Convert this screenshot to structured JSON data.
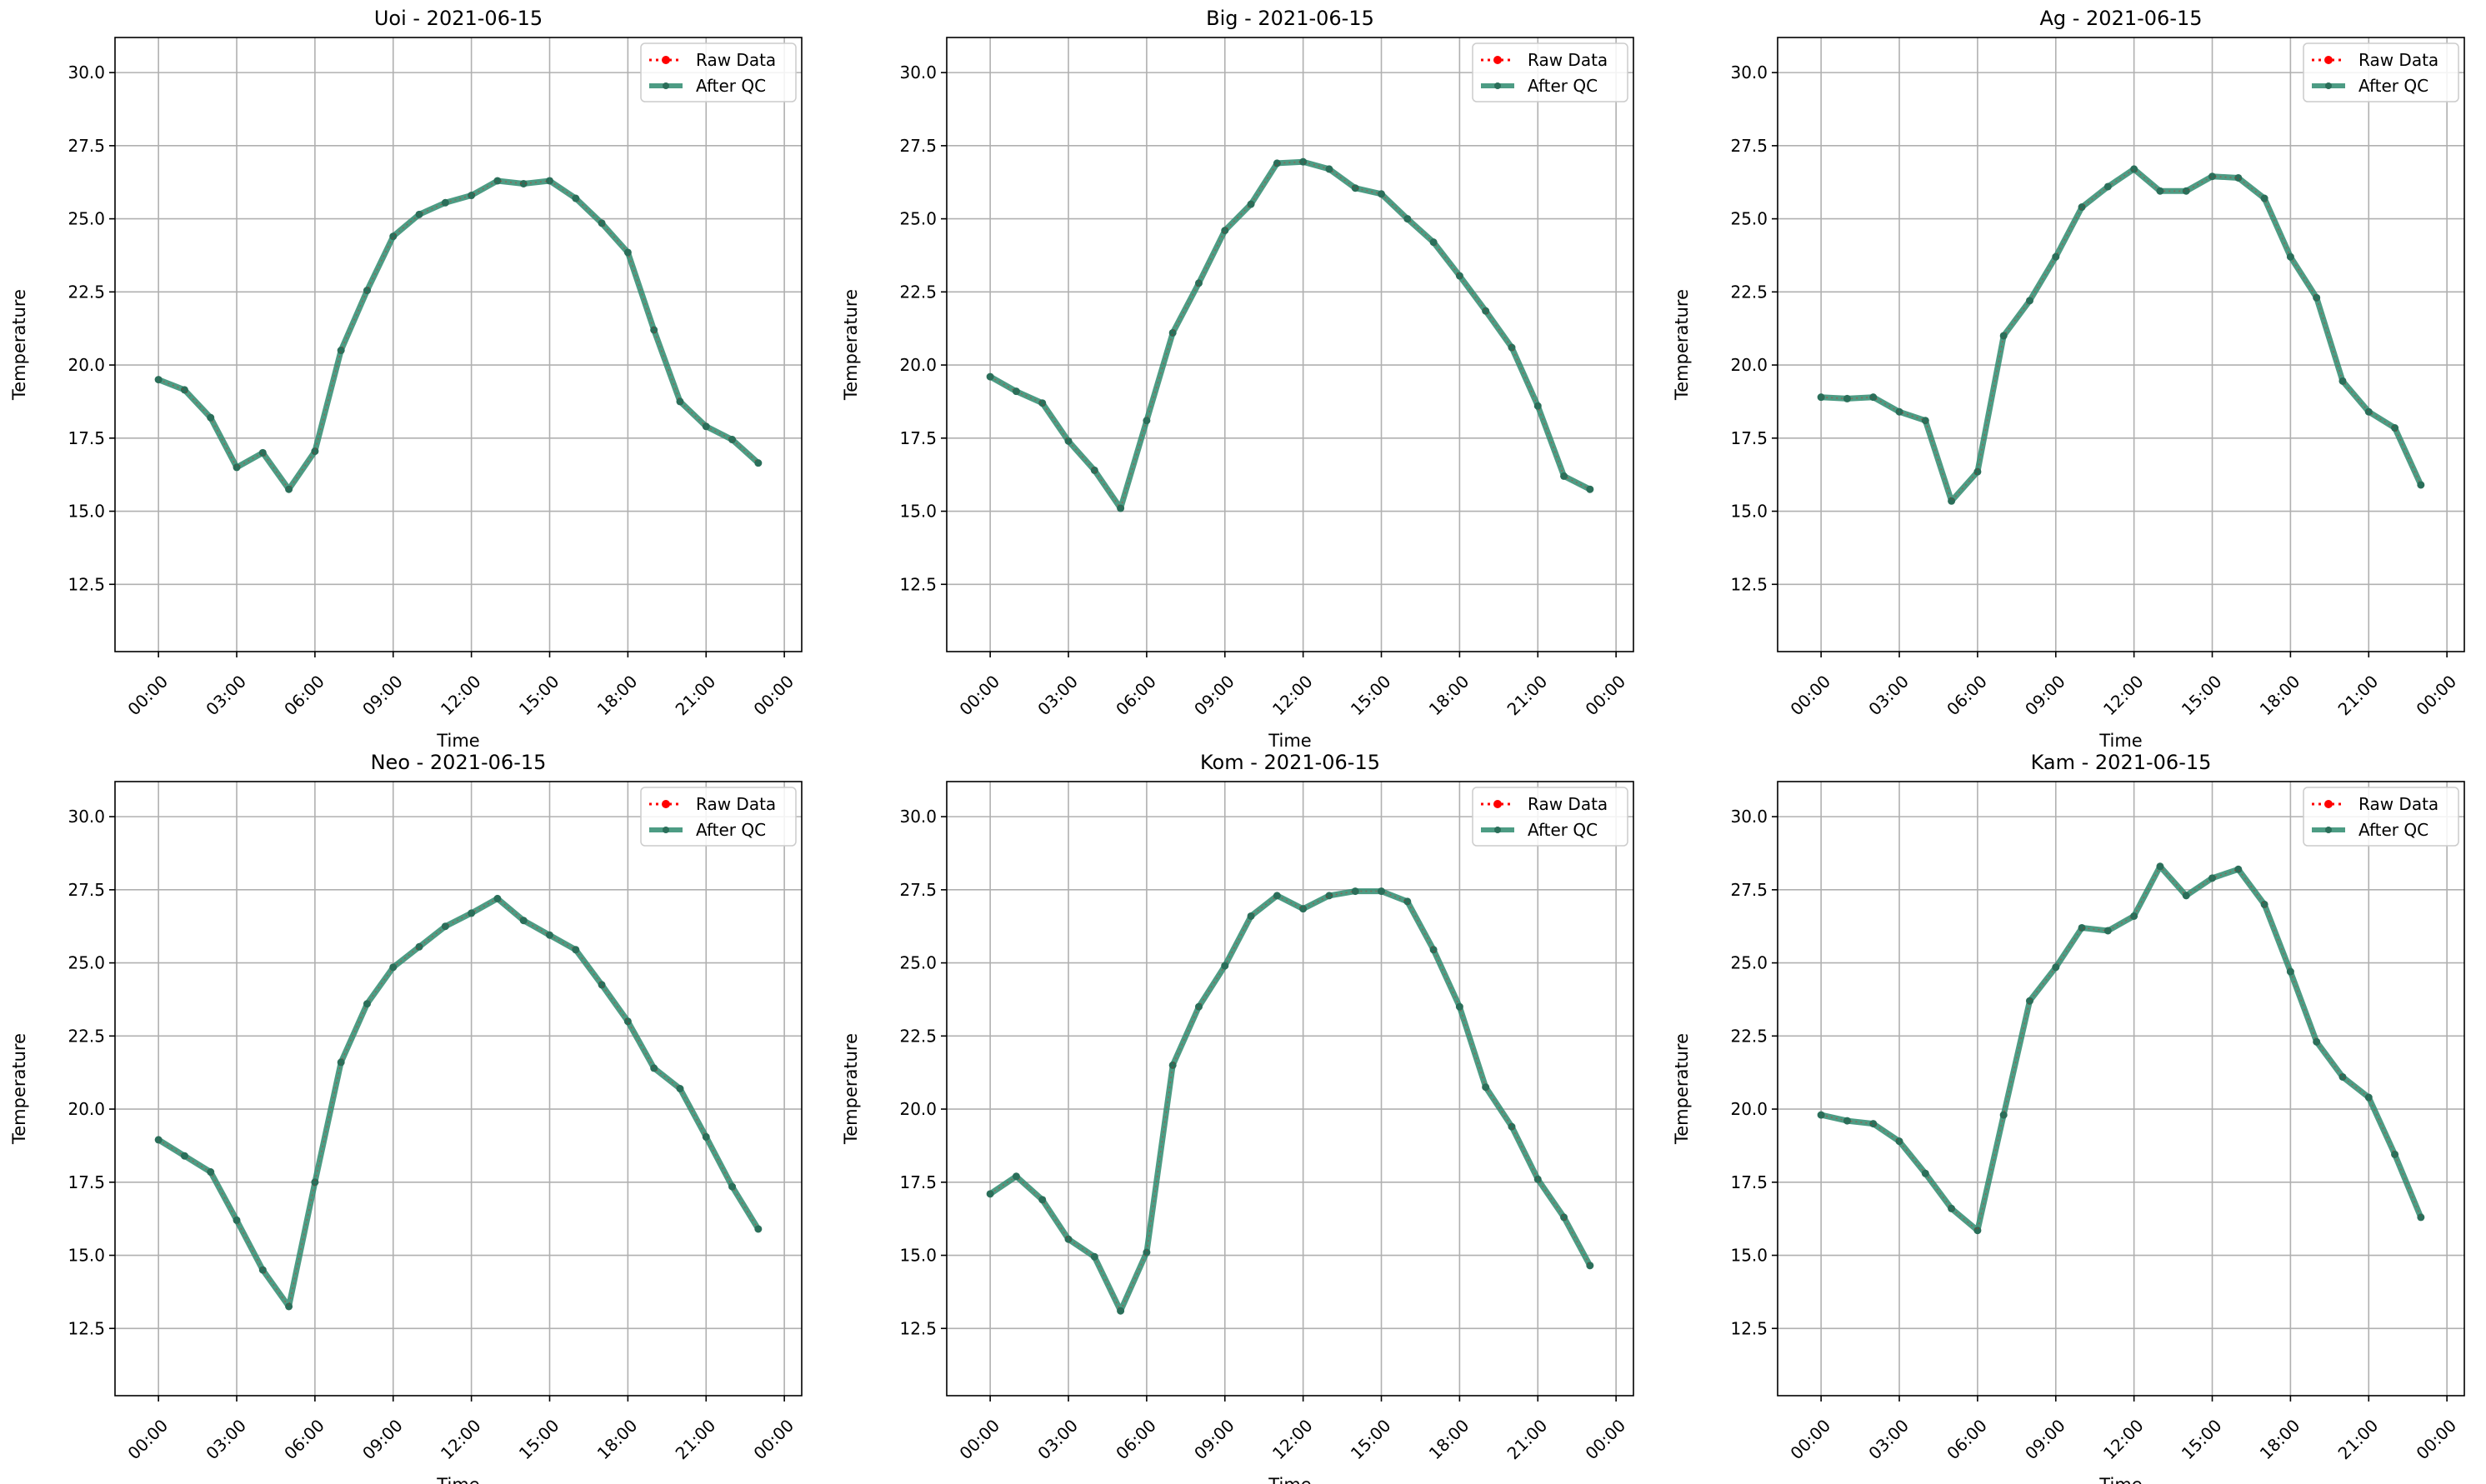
{
  "legend": {
    "raw_label": "Raw Data",
    "qc_label": "After QC"
  },
  "colors": {
    "raw": "#ff0000",
    "qc": "#2e8b6f",
    "qc_marker": "#2b6f5a",
    "grid": "#b0b0b0",
    "axes": "#000000"
  },
  "chart_data": [
    {
      "type": "line",
      "title": "Uoi - 2021-06-15",
      "xlabel": "Time",
      "ylabel": "Temperature",
      "xlim": [
        "2021-06-14 22:20",
        "2021-06-16 00:40"
      ],
      "ylim": [
        10.2,
        31.2
      ],
      "xticks": [
        "00:00",
        "03:00",
        "06:00",
        "09:00",
        "12:00",
        "15:00",
        "18:00",
        "21:00",
        "00:00"
      ],
      "yticks": [
        "12.5",
        "15.0",
        "17.5",
        "20.0",
        "22.5",
        "25.0",
        "27.5",
        "30.0"
      ],
      "grid": true,
      "legend_position": "upper right",
      "x": [
        "00:00",
        "01:00",
        "02:00",
        "03:00",
        "04:00",
        "05:00",
        "06:00",
        "07:00",
        "08:00",
        "09:00",
        "10:00",
        "11:00",
        "12:00",
        "13:00",
        "14:00",
        "15:00",
        "16:00",
        "17:00",
        "18:00",
        "19:00",
        "20:00",
        "21:00",
        "22:00",
        "23:00"
      ],
      "series": [
        {
          "name": "Raw Data",
          "values": [
            19.5,
            19.15,
            18.2,
            16.5,
            17.0,
            15.75,
            17.05,
            20.5,
            22.55,
            24.4,
            25.15,
            25.55,
            25.8,
            26.3,
            26.2,
            26.3,
            25.7,
            24.85,
            23.85,
            21.2,
            18.75,
            17.9,
            17.45,
            16.65
          ]
        },
        {
          "name": "After QC",
          "values": [
            19.5,
            19.15,
            18.2,
            16.5,
            17.0,
            15.75,
            17.05,
            20.5,
            22.55,
            24.4,
            25.15,
            25.55,
            25.8,
            26.3,
            26.2,
            26.3,
            25.7,
            24.85,
            23.85,
            21.2,
            18.75,
            17.9,
            17.45,
            16.65
          ]
        }
      ]
    },
    {
      "type": "line",
      "title": "Big - 2021-06-15",
      "xlabel": "Time",
      "ylabel": "Temperature",
      "xlim": [
        "2021-06-14 22:20",
        "2021-06-16 00:40"
      ],
      "ylim": [
        10.2,
        31.2
      ],
      "xticks": [
        "00:00",
        "03:00",
        "06:00",
        "09:00",
        "12:00",
        "15:00",
        "18:00",
        "21:00",
        "00:00"
      ],
      "yticks": [
        "12.5",
        "15.0",
        "17.5",
        "20.0",
        "22.5",
        "25.0",
        "27.5",
        "30.0"
      ],
      "grid": true,
      "legend_position": "upper right",
      "x": [
        "00:00",
        "01:00",
        "02:00",
        "03:00",
        "04:00",
        "05:00",
        "06:00",
        "07:00",
        "08:00",
        "09:00",
        "10:00",
        "11:00",
        "12:00",
        "13:00",
        "14:00",
        "15:00",
        "16:00",
        "17:00",
        "18:00",
        "19:00",
        "20:00",
        "21:00",
        "22:00",
        "23:00"
      ],
      "series": [
        {
          "name": "Raw Data",
          "values": [
            19.6,
            19.1,
            18.7,
            17.4,
            16.4,
            15.1,
            18.1,
            21.1,
            22.8,
            24.6,
            25.5,
            26.9,
            26.95,
            26.7,
            26.05,
            25.85,
            25.0,
            24.2,
            23.05,
            21.85,
            20.6,
            18.6,
            16.2,
            15.75
          ]
        },
        {
          "name": "After QC",
          "values": [
            19.6,
            19.1,
            18.7,
            17.4,
            16.4,
            15.1,
            18.1,
            21.1,
            22.8,
            24.6,
            25.5,
            26.9,
            26.95,
            26.7,
            26.05,
            25.85,
            25.0,
            24.2,
            23.05,
            21.85,
            20.6,
            18.6,
            16.2,
            15.75
          ]
        }
      ]
    },
    {
      "type": "line",
      "title": "Ag - 2021-06-15",
      "xlabel": "Time",
      "ylabel": "Temperature",
      "xlim": [
        "2021-06-14 22:20",
        "2021-06-16 00:40"
      ],
      "ylim": [
        10.2,
        31.2
      ],
      "xticks": [
        "00:00",
        "03:00",
        "06:00",
        "09:00",
        "12:00",
        "15:00",
        "18:00",
        "21:00",
        "00:00"
      ],
      "yticks": [
        "12.5",
        "15.0",
        "17.5",
        "20.0",
        "22.5",
        "25.0",
        "27.5",
        "30.0"
      ],
      "grid": true,
      "legend_position": "upper right",
      "x": [
        "00:00",
        "01:00",
        "02:00",
        "03:00",
        "04:00",
        "05:00",
        "06:00",
        "07:00",
        "08:00",
        "09:00",
        "10:00",
        "11:00",
        "12:00",
        "13:00",
        "14:00",
        "15:00",
        "16:00",
        "17:00",
        "18:00",
        "19:00",
        "20:00",
        "21:00",
        "22:00",
        "23:00"
      ],
      "series": [
        {
          "name": "Raw Data",
          "values": [
            18.9,
            18.85,
            18.9,
            18.4,
            18.1,
            15.35,
            16.35,
            21.0,
            22.2,
            23.7,
            25.4,
            26.1,
            26.7,
            25.95,
            25.95,
            26.45,
            26.4,
            25.7,
            23.7,
            22.3,
            19.45,
            18.4,
            17.85,
            15.9
          ]
        },
        {
          "name": "After QC",
          "values": [
            18.9,
            18.85,
            18.9,
            18.4,
            18.1,
            15.35,
            16.35,
            21.0,
            22.2,
            23.7,
            25.4,
            26.1,
            26.7,
            25.95,
            25.95,
            26.45,
            26.4,
            25.7,
            23.7,
            22.3,
            19.45,
            18.4,
            17.85,
            15.9
          ]
        }
      ]
    },
    {
      "type": "line",
      "title": "Neo - 2021-06-15",
      "xlabel": "Time",
      "ylabel": "Temperature",
      "xlim": [
        "2021-06-14 22:20",
        "2021-06-16 00:40"
      ],
      "ylim": [
        10.2,
        31.2
      ],
      "xticks": [
        "00:00",
        "03:00",
        "06:00",
        "09:00",
        "12:00",
        "15:00",
        "18:00",
        "21:00",
        "00:00"
      ],
      "yticks": [
        "12.5",
        "15.0",
        "17.5",
        "20.0",
        "22.5",
        "25.0",
        "27.5",
        "30.0"
      ],
      "grid": true,
      "legend_position": "upper right",
      "x": [
        "00:00",
        "01:00",
        "02:00",
        "03:00",
        "04:00",
        "05:00",
        "06:00",
        "07:00",
        "08:00",
        "09:00",
        "10:00",
        "11:00",
        "12:00",
        "13:00",
        "14:00",
        "15:00",
        "16:00",
        "17:00",
        "18:00",
        "19:00",
        "20:00",
        "21:00",
        "22:00",
        "23:00"
      ],
      "series": [
        {
          "name": "Raw Data",
          "values": [
            18.95,
            18.4,
            17.85,
            16.2,
            14.5,
            13.25,
            17.5,
            21.6,
            23.6,
            24.85,
            25.55,
            26.25,
            26.7,
            27.2,
            26.45,
            25.95,
            25.45,
            24.25,
            23.0,
            21.4,
            20.7,
            19.05,
            17.35,
            15.9
          ]
        },
        {
          "name": "After QC",
          "values": [
            18.95,
            18.4,
            17.85,
            16.2,
            14.5,
            13.25,
            17.5,
            21.6,
            23.6,
            24.85,
            25.55,
            26.25,
            26.7,
            27.2,
            26.45,
            25.95,
            25.45,
            24.25,
            23.0,
            21.4,
            20.7,
            19.05,
            17.35,
            15.9
          ]
        }
      ]
    },
    {
      "type": "line",
      "title": "Kom - 2021-06-15",
      "xlabel": "Time",
      "ylabel": "Temperature",
      "xlim": [
        "2021-06-14 22:20",
        "2021-06-16 00:40"
      ],
      "ylim": [
        10.2,
        31.2
      ],
      "xticks": [
        "00:00",
        "03:00",
        "06:00",
        "09:00",
        "12:00",
        "15:00",
        "18:00",
        "21:00",
        "00:00"
      ],
      "yticks": [
        "12.5",
        "15.0",
        "17.5",
        "20.0",
        "22.5",
        "25.0",
        "27.5",
        "30.0"
      ],
      "grid": true,
      "legend_position": "upper right",
      "x": [
        "00:00",
        "01:00",
        "02:00",
        "03:00",
        "04:00",
        "05:00",
        "06:00",
        "07:00",
        "08:00",
        "09:00",
        "10:00",
        "11:00",
        "12:00",
        "13:00",
        "14:00",
        "15:00",
        "16:00",
        "17:00",
        "18:00",
        "19:00",
        "20:00",
        "21:00",
        "22:00",
        "23:00"
      ],
      "series": [
        {
          "name": "Raw Data",
          "values": [
            17.1,
            17.7,
            16.9,
            15.55,
            14.95,
            13.1,
            15.1,
            21.5,
            23.5,
            24.9,
            26.6,
            27.3,
            26.85,
            27.3,
            27.45,
            27.45,
            27.1,
            25.45,
            23.5,
            20.75,
            19.4,
            17.6,
            16.3,
            14.65
          ]
        },
        {
          "name": "After QC",
          "values": [
            17.1,
            17.7,
            16.9,
            15.55,
            14.95,
            13.1,
            15.1,
            21.5,
            23.5,
            24.9,
            26.6,
            27.3,
            26.85,
            27.3,
            27.45,
            27.45,
            27.1,
            25.45,
            23.5,
            20.75,
            19.4,
            17.6,
            16.3,
            14.65
          ]
        }
      ]
    },
    {
      "type": "line",
      "title": "Kam - 2021-06-15",
      "xlabel": "Time",
      "ylabel": "Temperature",
      "xlim": [
        "2021-06-14 22:20",
        "2021-06-16 00:40"
      ],
      "ylim": [
        10.2,
        31.2
      ],
      "xticks": [
        "00:00",
        "03:00",
        "06:00",
        "09:00",
        "12:00",
        "15:00",
        "18:00",
        "21:00",
        "00:00"
      ],
      "yticks": [
        "12.5",
        "15.0",
        "17.5",
        "20.0",
        "22.5",
        "25.0",
        "27.5",
        "30.0"
      ],
      "grid": true,
      "legend_position": "upper right",
      "x": [
        "00:00",
        "01:00",
        "02:00",
        "03:00",
        "04:00",
        "05:00",
        "06:00",
        "07:00",
        "08:00",
        "09:00",
        "10:00",
        "11:00",
        "12:00",
        "13:00",
        "14:00",
        "15:00",
        "16:00",
        "17:00",
        "18:00",
        "19:00",
        "20:00",
        "21:00",
        "22:00",
        "23:00"
      ],
      "series": [
        {
          "name": "Raw Data",
          "values": [
            19.8,
            19.6,
            19.5,
            18.9,
            17.8,
            16.6,
            15.85,
            19.8,
            23.7,
            24.85,
            26.2,
            26.1,
            26.6,
            28.3,
            27.3,
            27.9,
            28.2,
            27.0,
            24.7,
            22.3,
            21.1,
            20.4,
            18.45,
            16.3
          ]
        },
        {
          "name": "After QC",
          "values": [
            19.8,
            19.6,
            19.5,
            18.9,
            17.8,
            16.6,
            15.85,
            19.8,
            23.7,
            24.85,
            26.2,
            26.1,
            26.6,
            28.3,
            27.3,
            27.9,
            28.2,
            27.0,
            24.7,
            22.3,
            21.1,
            20.4,
            18.45,
            16.3
          ]
        }
      ]
    }
  ]
}
